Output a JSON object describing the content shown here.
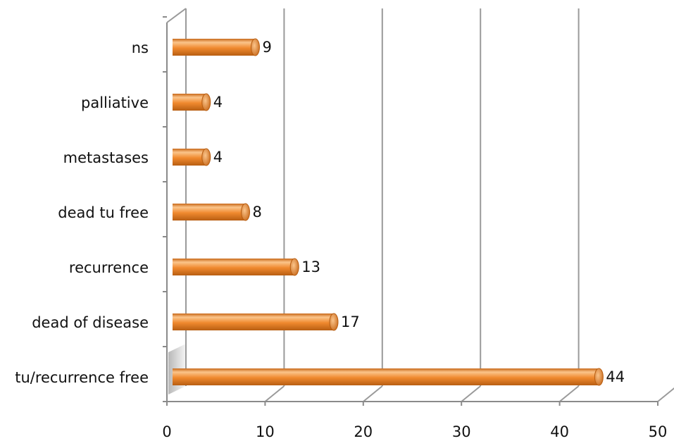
{
  "chart_data": {
    "type": "bar",
    "orientation": "horizontal",
    "categories": [
      "tu/recurrence free",
      "dead of disease",
      "recurrence",
      "dead tu free",
      "metastases",
      "palliative",
      "ns"
    ],
    "values": [
      44,
      17,
      13,
      8,
      4,
      4,
      9
    ],
    "data_labels": [
      "44",
      "17",
      "13",
      "8",
      "4",
      "4",
      "9"
    ],
    "xlim": [
      0,
      50
    ],
    "x_ticks": [
      0,
      10,
      20,
      30,
      40,
      50
    ],
    "x_tick_labels": [
      "0",
      "10",
      "20",
      "30",
      "40",
      "50"
    ],
    "grid": true,
    "style": "3d-cylinder",
    "bar_color": "#F0892E",
    "bar_highlight": "#FBC48A",
    "bar_shade": "#B85E12"
  }
}
